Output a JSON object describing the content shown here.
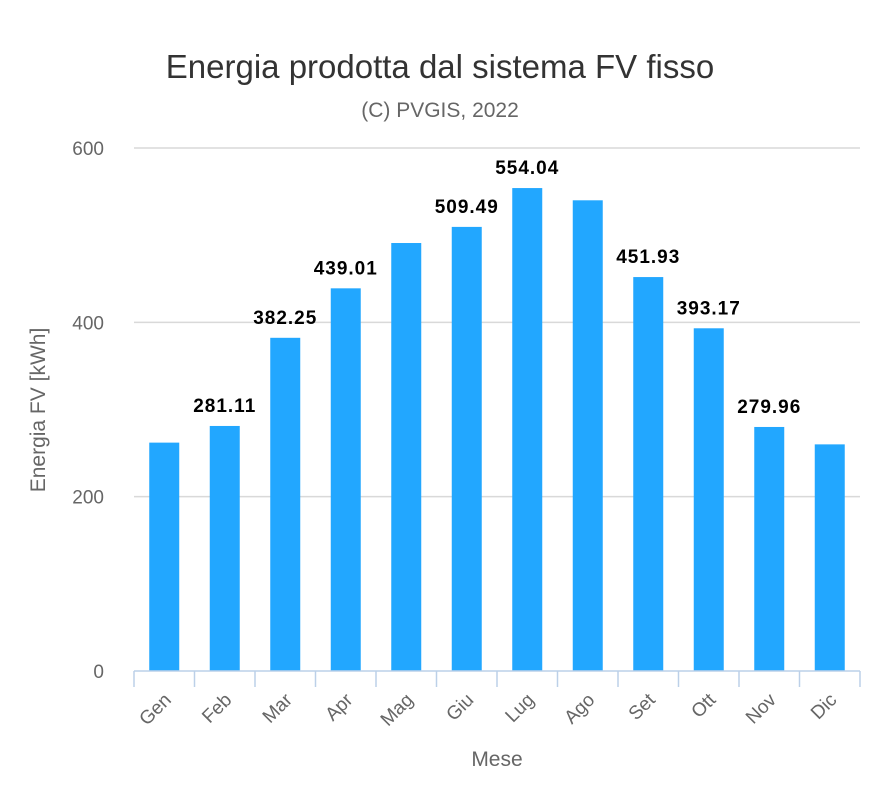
{
  "chart_data": {
    "type": "bar",
    "title": "Energia prodotta dal sistema FV fisso",
    "subtitle": "(C) PVGIS, 2022",
    "xlabel": "Mese",
    "ylabel": "Energia FV [kWh]",
    "categories": [
      "Gen",
      "Feb",
      "Mar",
      "Apr",
      "Mag",
      "Giu",
      "Lug",
      "Ago",
      "Set",
      "Ott",
      "Nov",
      "Dic"
    ],
    "values": [
      262,
      281.11,
      382.25,
      439.01,
      491,
      509.49,
      554.04,
      540,
      451.93,
      393.17,
      279.96,
      260
    ],
    "data_labels": [
      "",
      "281.11",
      "382.25",
      "439.01",
      "",
      "509.49",
      "554.04",
      "",
      "451.93",
      "393.17",
      "279.96",
      ""
    ],
    "ylim": [
      0,
      600
    ],
    "yticks": [
      0,
      200,
      400,
      600
    ],
    "grid": true,
    "bar_color": "#22a7ff",
    "grid_color": "#d9d9d9",
    "axis_color": "#bcd0e8"
  }
}
